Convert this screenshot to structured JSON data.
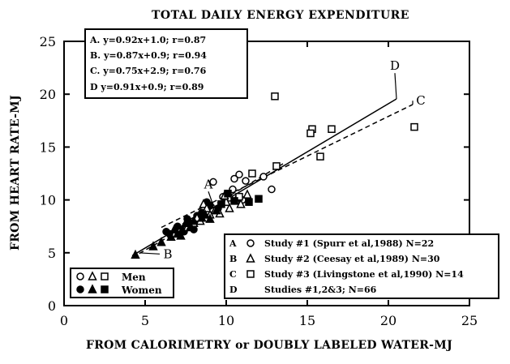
{
  "chart_data": {
    "type": "scatter",
    "title": "TOTAL DAILY ENERGY EXPENDITURE",
    "xlabel": "FROM CALORIMETRY or DOUBLY LABELED WATER-MJ",
    "ylabel": "FROM HEART RATE-MJ",
    "xlim": [
      0,
      25
    ],
    "ylim": [
      0,
      25
    ],
    "xticks": [
      "0",
      "5",
      "10",
      "15",
      "20",
      "25"
    ],
    "yticks": [
      "0",
      "5",
      "10",
      "15",
      "20",
      "25"
    ],
    "grid": false,
    "equations": [
      "A. y=0.92x+1.0; r=0.87",
      "B. y=0.87x+0.9; r=0.94",
      "C. y=0.75x+2.9; r=0.76",
      "D  y=0.91x+0.9; r=0.89"
    ],
    "regression_lines": [
      {
        "label": "A",
        "slope": 0.92,
        "intercept": 1.0,
        "x_range": [
          7.3,
          13.5
        ],
        "style": "dashed"
      },
      {
        "label": "B",
        "slope": 0.87,
        "intercept": 0.9,
        "x_range": [
          4.2,
          9.5
        ],
        "style": "dashed"
      },
      {
        "label": "C",
        "slope": 0.75,
        "intercept": 2.9,
        "x_range": [
          6.0,
          21.5
        ],
        "style": "dashed"
      },
      {
        "label": "D",
        "slope": 0.91,
        "intercept": 0.9,
        "x_range": [
          4.2,
          20.5
        ],
        "style": "solid"
      }
    ],
    "line_labels": [
      {
        "text": "A",
        "x": 8.9,
        "y": 11.1
      },
      {
        "text": "B",
        "x": 6.4,
        "y": 4.5
      },
      {
        "text": "C",
        "x": 22.0,
        "y": 19.0
      },
      {
        "text": "D",
        "x": 20.4,
        "y": 22.3
      }
    ],
    "series": [
      {
        "study": "Study #1 (Spurr et al,1988) N=22",
        "marker": "circle",
        "points": [
          {
            "x": 9.2,
            "y": 11.7,
            "sex": "men"
          },
          {
            "x": 10.8,
            "y": 12.4,
            "sex": "men"
          },
          {
            "x": 10.5,
            "y": 12.0,
            "sex": "men"
          },
          {
            "x": 11.2,
            "y": 11.8,
            "sex": "men"
          },
          {
            "x": 10.4,
            "y": 11.0,
            "sex": "men"
          },
          {
            "x": 12.8,
            "y": 11.0,
            "sex": "men"
          },
          {
            "x": 12.3,
            "y": 12.2,
            "sex": "men"
          },
          {
            "x": 10.2,
            "y": 10.2,
            "sex": "men"
          },
          {
            "x": 9.8,
            "y": 10.3,
            "sex": "men"
          },
          {
            "x": 11.0,
            "y": 10.0,
            "sex": "men"
          },
          {
            "x": 8.0,
            "y": 7.2,
            "sex": "women"
          },
          {
            "x": 7.4,
            "y": 7.0,
            "sex": "women"
          },
          {
            "x": 6.5,
            "y": 6.8,
            "sex": "women"
          },
          {
            "x": 6.3,
            "y": 7.0,
            "sex": "women"
          },
          {
            "x": 7.0,
            "y": 7.5,
            "sex": "women"
          },
          {
            "x": 7.8,
            "y": 7.8,
            "sex": "women"
          },
          {
            "x": 8.2,
            "y": 8.5,
            "sex": "women"
          },
          {
            "x": 8.8,
            "y": 9.8,
            "sex": "women"
          },
          {
            "x": 9.0,
            "y": 9.5,
            "sex": "women"
          },
          {
            "x": 9.5,
            "y": 9.2,
            "sex": "women"
          },
          {
            "x": 8.5,
            "y": 8.8,
            "sex": "women"
          },
          {
            "x": 7.6,
            "y": 8.2,
            "sex": "women"
          }
        ]
      },
      {
        "study": "Study #2 (Ceesay et al,1989) N=30",
        "marker": "triangle",
        "points": [
          {
            "x": 8.6,
            "y": 9.6,
            "sex": "men"
          },
          {
            "x": 9.3,
            "y": 9.0,
            "sex": "men"
          },
          {
            "x": 10.0,
            "y": 9.8,
            "sex": "men"
          },
          {
            "x": 10.6,
            "y": 10.0,
            "sex": "men"
          },
          {
            "x": 8.4,
            "y": 8.0,
            "sex": "men"
          },
          {
            "x": 9.6,
            "y": 8.7,
            "sex": "men"
          },
          {
            "x": 8.0,
            "y": 7.8,
            "sex": "men"
          },
          {
            "x": 7.6,
            "y": 7.4,
            "sex": "men"
          },
          {
            "x": 11.3,
            "y": 10.5,
            "sex": "men"
          },
          {
            "x": 10.2,
            "y": 9.2,
            "sex": "men"
          },
          {
            "x": 9.0,
            "y": 8.6,
            "sex": "men"
          },
          {
            "x": 8.8,
            "y": 9.2,
            "sex": "men"
          },
          {
            "x": 10.9,
            "y": 9.6,
            "sex": "men"
          },
          {
            "x": 9.9,
            "y": 10.4,
            "sex": "men"
          },
          {
            "x": 8.2,
            "y": 8.3,
            "sex": "men"
          },
          {
            "x": 4.4,
            "y": 4.8,
            "sex": "women"
          },
          {
            "x": 5.5,
            "y": 5.6,
            "sex": "women"
          },
          {
            "x": 6.0,
            "y": 6.0,
            "sex": "women"
          },
          {
            "x": 6.6,
            "y": 6.5,
            "sex": "women"
          },
          {
            "x": 7.0,
            "y": 6.8,
            "sex": "women"
          },
          {
            "x": 7.3,
            "y": 7.2,
            "sex": "women"
          },
          {
            "x": 7.8,
            "y": 7.5,
            "sex": "women"
          },
          {
            "x": 8.0,
            "y": 8.0,
            "sex": "women"
          },
          {
            "x": 8.5,
            "y": 8.3,
            "sex": "women"
          },
          {
            "x": 9.0,
            "y": 8.2,
            "sex": "women"
          },
          {
            "x": 9.4,
            "y": 9.0,
            "sex": "women"
          },
          {
            "x": 7.5,
            "y": 7.8,
            "sex": "women"
          },
          {
            "x": 6.8,
            "y": 7.2,
            "sex": "women"
          },
          {
            "x": 8.7,
            "y": 8.6,
            "sex": "women"
          },
          {
            "x": 7.2,
            "y": 6.6,
            "sex": "women"
          }
        ]
      },
      {
        "study": "Study #3 (Livingstone et al,1990) N=14",
        "marker": "square",
        "points": [
          {
            "x": 13.0,
            "y": 19.8,
            "sex": "men"
          },
          {
            "x": 15.3,
            "y": 16.7,
            "sex": "men"
          },
          {
            "x": 16.5,
            "y": 16.7,
            "sex": "men"
          },
          {
            "x": 15.2,
            "y": 16.3,
            "sex": "men"
          },
          {
            "x": 21.6,
            "y": 16.9,
            "sex": "men"
          },
          {
            "x": 15.8,
            "y": 14.1,
            "sex": "men"
          },
          {
            "x": 13.1,
            "y": 13.2,
            "sex": "men"
          },
          {
            "x": 11.6,
            "y": 12.5,
            "sex": "men"
          },
          {
            "x": 10.8,
            "y": 10.3,
            "sex": "men"
          },
          {
            "x": 11.4,
            "y": 9.8,
            "sex": "women"
          },
          {
            "x": 12.0,
            "y": 10.1,
            "sex": "women"
          },
          {
            "x": 10.5,
            "y": 9.9,
            "sex": "women"
          },
          {
            "x": 9.7,
            "y": 9.6,
            "sex": "women"
          },
          {
            "x": 10.1,
            "y": 10.6,
            "sex": "women"
          }
        ]
      }
    ],
    "legend": {
      "placement": "bottom-right",
      "entries": [
        {
          "id": "A",
          "text": "Study #1 (Spurr et al,1988) N=22",
          "marker": "circle"
        },
        {
          "id": "B",
          "text": "Study #2 (Ceesay et al,1989) N=30",
          "marker": "triangle"
        },
        {
          "id": "C",
          "text": "Study #3 (Livingstone et al,1990) N=14",
          "marker": "square"
        },
        {
          "id": "D",
          "text": "Studies #1,2&3; N=66",
          "marker": ""
        }
      ]
    },
    "sex_legend": {
      "placement": "bottom-left",
      "men": "Men",
      "women": "Women"
    }
  }
}
